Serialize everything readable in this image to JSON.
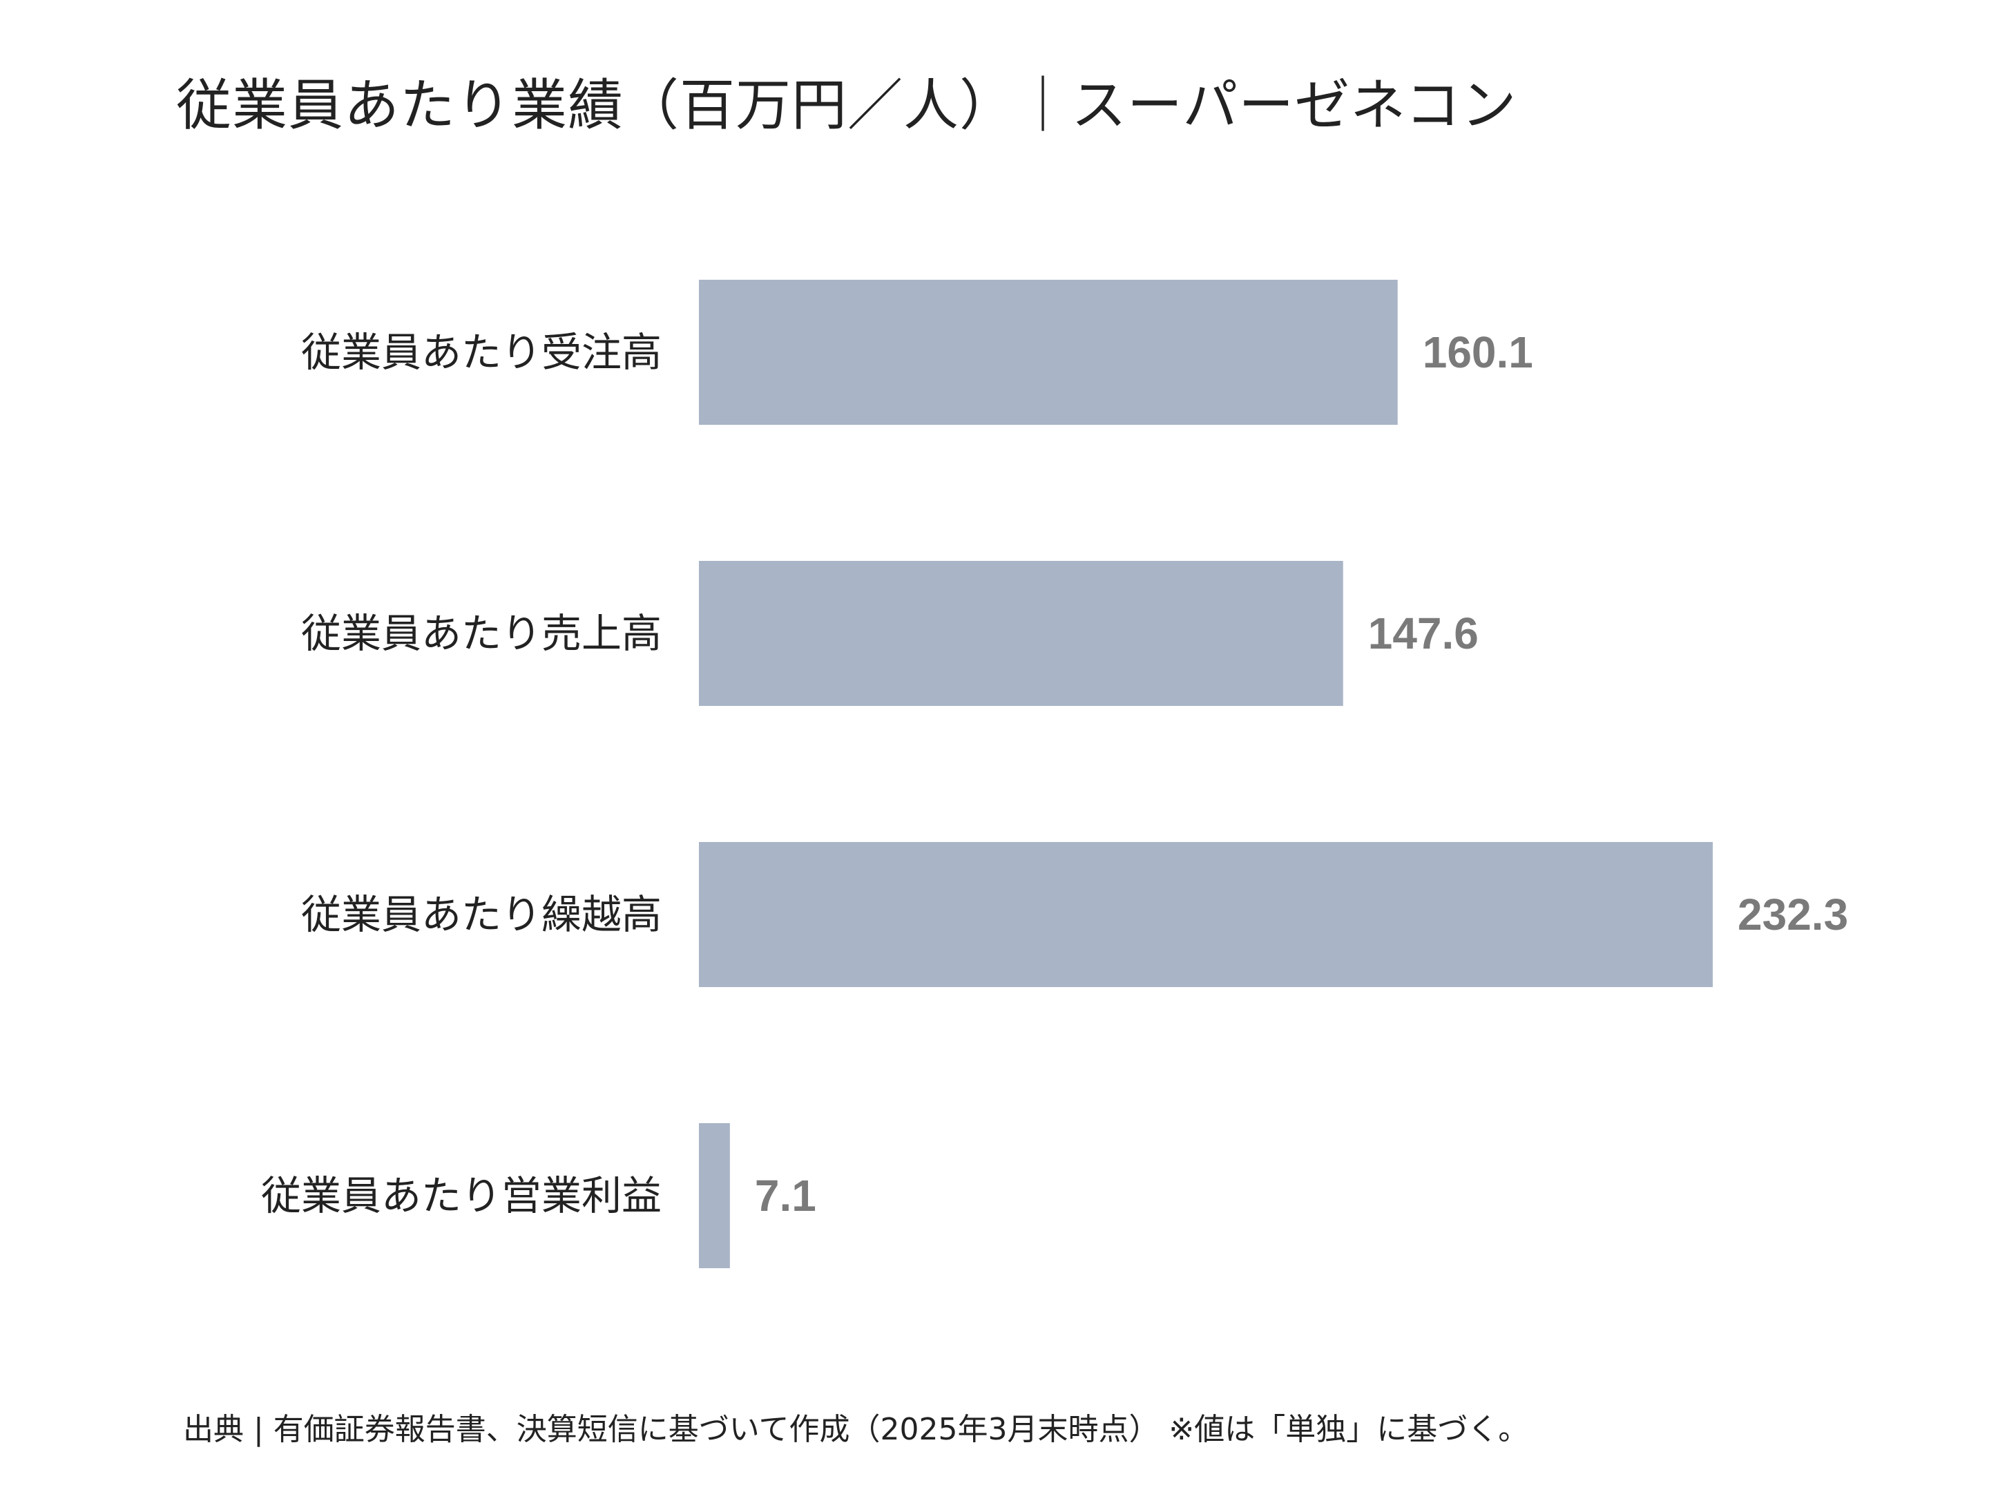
{
  "title": "従業員あたり業績（百万円／人）｜スーパーゼネコン",
  "source": "出典 | 有価証券報告書、決算短信に基づいて作成（2025年3月末時点） ※値は「単独」に基づく。",
  "colors": {
    "bar": "#a9b5c6",
    "value_label": "#7a7a7a",
    "category_label": "#222222"
  },
  "chart_data": {
    "type": "bar",
    "orientation": "horizontal",
    "categories": [
      "従業員あたり受注高",
      "従業員あたり売上高",
      "従業員あたり繰越高",
      "従業員あたり営業利益"
    ],
    "values": [
      160.1,
      147.6,
      232.3,
      7.1
    ],
    "value_labels": [
      "160.1",
      "147.6",
      "232.3",
      "7.1"
    ],
    "title": "従業員あたり業績（百万円／人）｜スーパーゼネコン",
    "xlabel": "",
    "ylabel": "",
    "xlim": [
      0,
      232.3
    ],
    "grid": false,
    "legend": "none"
  }
}
